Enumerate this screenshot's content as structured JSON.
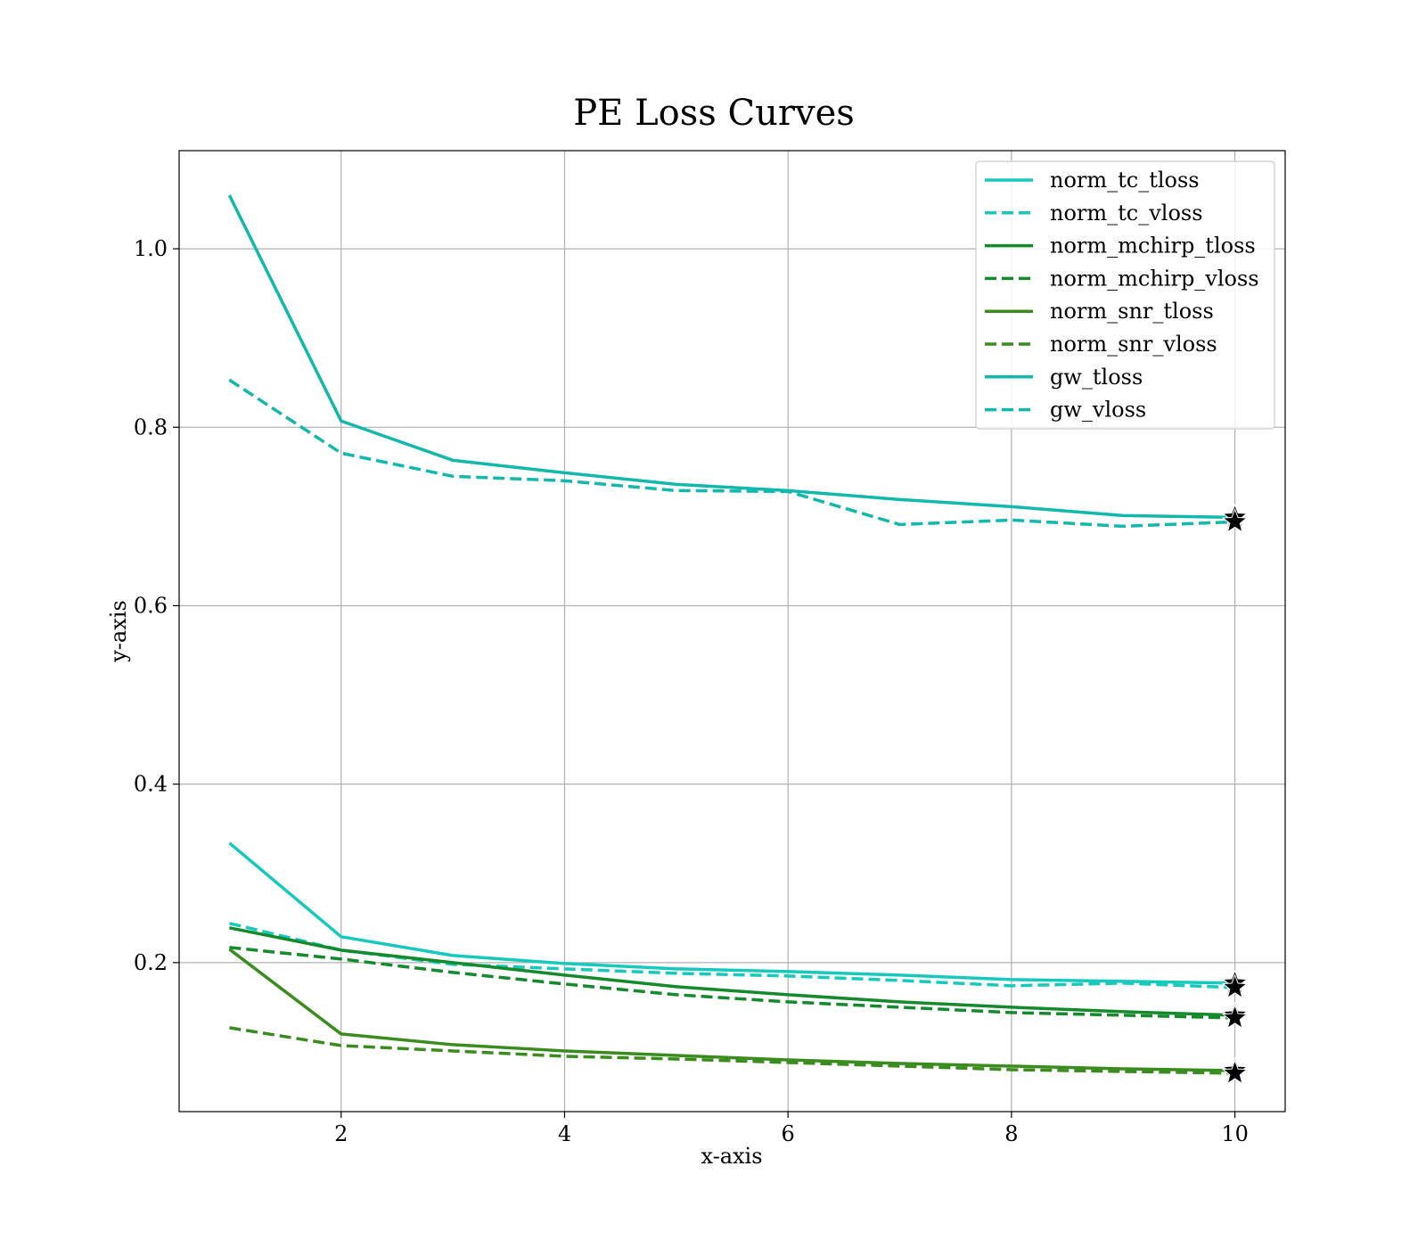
{
  "chart_data": {
    "type": "line",
    "title": "PE Loss Curves",
    "xlabel": "x-axis",
    "ylabel": "y-axis",
    "xlim": [
      0.55,
      10.45
    ],
    "ylim": [
      0.033,
      1.11
    ],
    "xticks": [
      2,
      4,
      6,
      8,
      10
    ],
    "yticks": [
      0.2,
      0.4,
      0.6,
      0.8,
      1.0
    ],
    "xtick_labels": [
      "2",
      "4",
      "6",
      "8",
      "10"
    ],
    "ytick_labels": [
      "0.2",
      "0.4",
      "0.6",
      "0.8",
      "1.0"
    ],
    "grid": true,
    "legend_position": "top-right",
    "x": [
      1,
      2,
      3,
      4,
      5,
      6,
      7,
      8,
      9,
      10
    ],
    "final_marker": "star",
    "series": [
      {
        "name": "norm_tc_tloss",
        "color": "#17c9bd",
        "dash": "solid",
        "values": [
          0.334,
          0.229,
          0.208,
          0.199,
          0.193,
          0.19,
          0.186,
          0.181,
          0.179,
          0.177
        ]
      },
      {
        "name": "norm_tc_vloss",
        "color": "#17c9bd",
        "dash": "dashed",
        "values": [
          0.244,
          0.214,
          0.198,
          0.193,
          0.188,
          0.185,
          0.18,
          0.174,
          0.177,
          0.172
        ]
      },
      {
        "name": "norm_mchirp_tloss",
        "color": "#148a2c",
        "dash": "solid",
        "values": [
          0.239,
          0.214,
          0.2,
          0.186,
          0.173,
          0.164,
          0.156,
          0.15,
          0.145,
          0.141
        ]
      },
      {
        "name": "norm_mchirp_vloss",
        "color": "#148a2c",
        "dash": "dashed",
        "values": [
          0.217,
          0.204,
          0.189,
          0.176,
          0.164,
          0.156,
          0.15,
          0.144,
          0.141,
          0.138
        ]
      },
      {
        "name": "norm_snr_tloss",
        "color": "#3a8c1f",
        "dash": "solid",
        "values": [
          0.215,
          0.12,
          0.108,
          0.101,
          0.096,
          0.091,
          0.087,
          0.084,
          0.081,
          0.079
        ]
      },
      {
        "name": "norm_snr_vloss",
        "color": "#3a8c1f",
        "dash": "dashed",
        "values": [
          0.127,
          0.107,
          0.101,
          0.095,
          0.092,
          0.088,
          0.084,
          0.08,
          0.078,
          0.076
        ]
      },
      {
        "name": "gw_tloss",
        "color": "#12b8ab",
        "dash": "solid",
        "values": [
          1.06,
          0.807,
          0.763,
          0.749,
          0.736,
          0.729,
          0.719,
          0.711,
          0.701,
          0.699
        ]
      },
      {
        "name": "gw_vloss",
        "color": "#12b8ab",
        "dash": "dashed",
        "values": [
          0.853,
          0.771,
          0.745,
          0.74,
          0.729,
          0.728,
          0.691,
          0.696,
          0.689,
          0.694
        ]
      }
    ]
  }
}
